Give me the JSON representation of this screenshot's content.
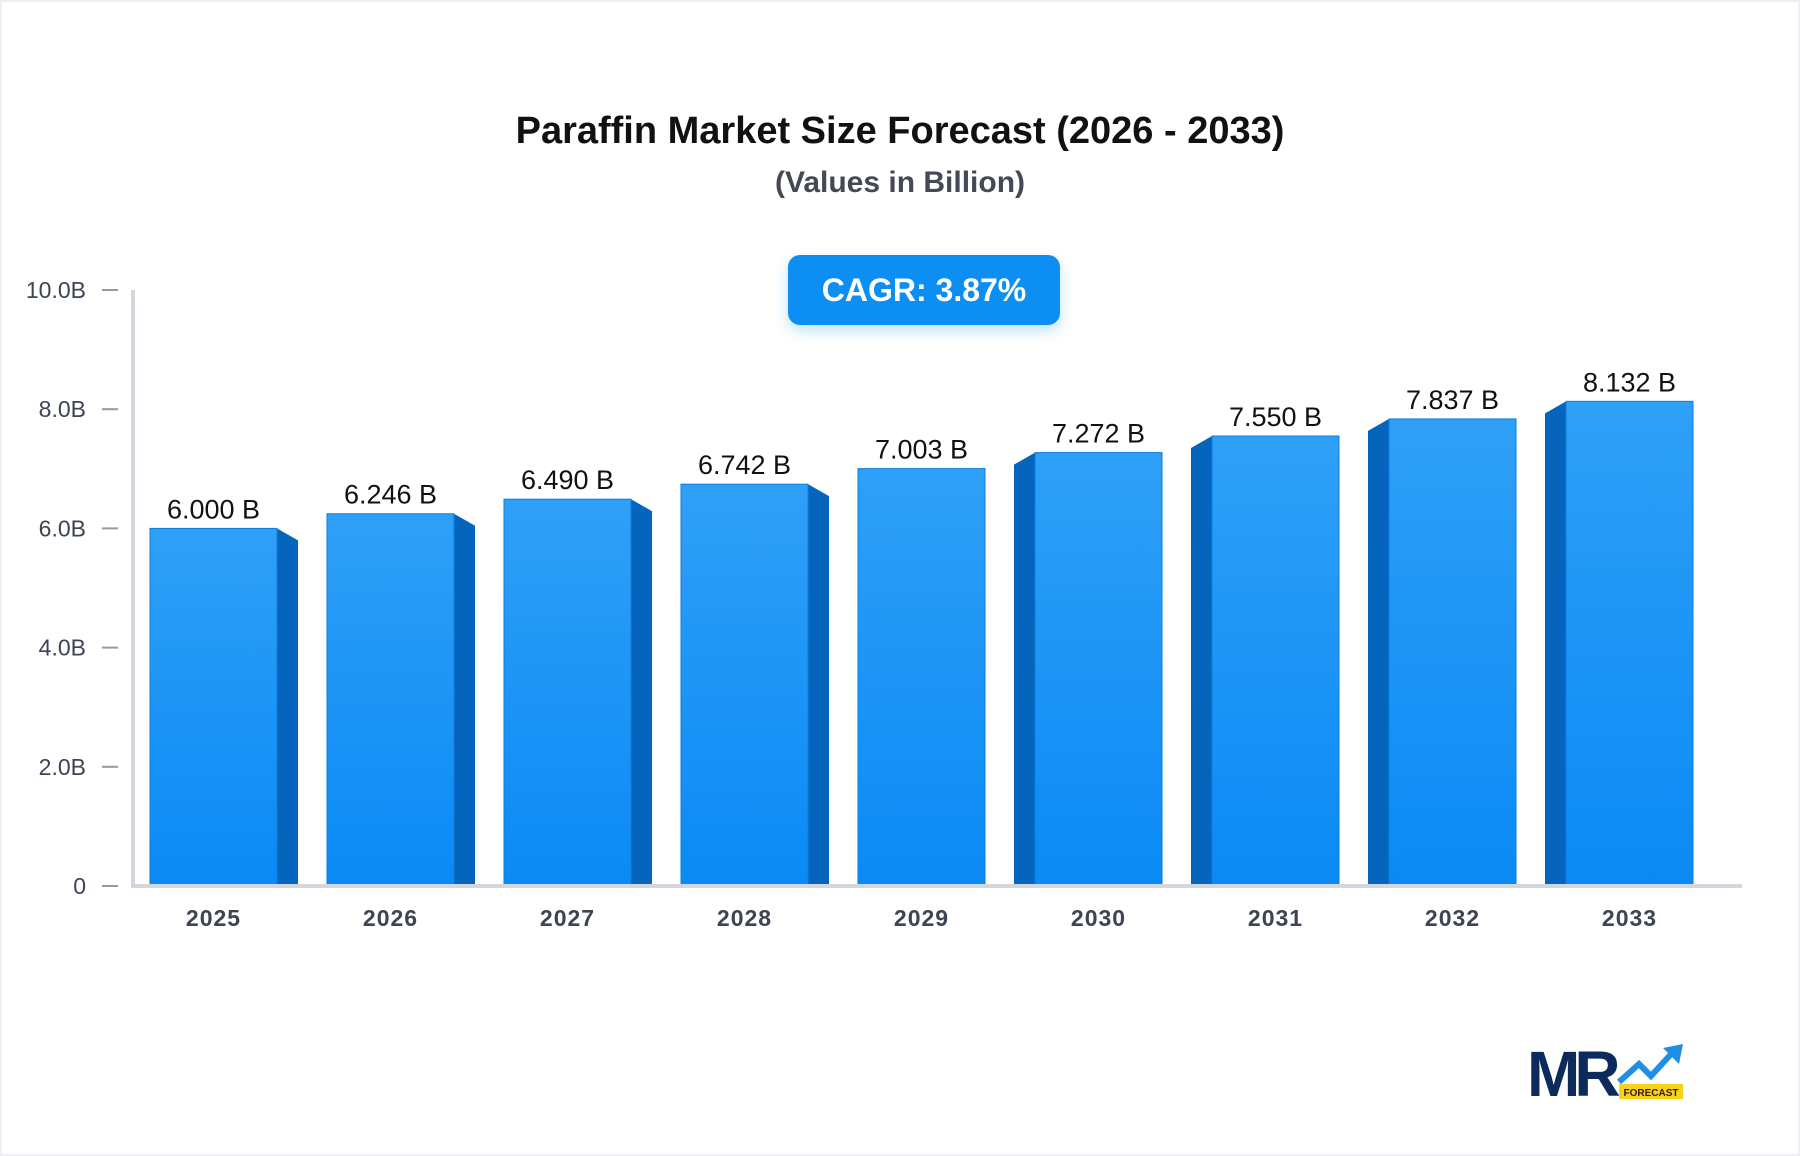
{
  "chart_data": {
    "type": "bar",
    "title": "Paraffin Market Size Forecast (2026 - 2033)",
    "subtitle": "(Values in Billion)",
    "annotation": "CAGR: 3.87%",
    "categories": [
      "2025",
      "2026",
      "2027",
      "2028",
      "2029",
      "2030",
      "2031",
      "2032",
      "2033"
    ],
    "values": [
      6.0,
      6.246,
      6.49,
      6.742,
      7.003,
      7.272,
      7.55,
      7.837,
      8.132
    ],
    "data_labels": [
      "6.000 B",
      "6.246 B",
      "6.490 B",
      "6.742 B",
      "7.003 B",
      "7.272 B",
      "7.550 B",
      "7.837 B",
      "8.132 B"
    ],
    "yticks": [
      0,
      2,
      4,
      6,
      8,
      10
    ],
    "ytick_labels": [
      "0",
      "2.0B",
      "4.0B",
      "6.0B",
      "8.0B",
      "10.0B"
    ],
    "ylim": [
      0,
      10
    ],
    "xlabel": "",
    "ylabel": "",
    "grid": false,
    "colors": {
      "bar_top": "#2fa0f7",
      "bar_bottom": "#0a8af5",
      "bar_side": "#0565bd",
      "axis": "#d3d6dc"
    }
  },
  "logo": {
    "text": "MR",
    "tag": "FORECAST"
  }
}
